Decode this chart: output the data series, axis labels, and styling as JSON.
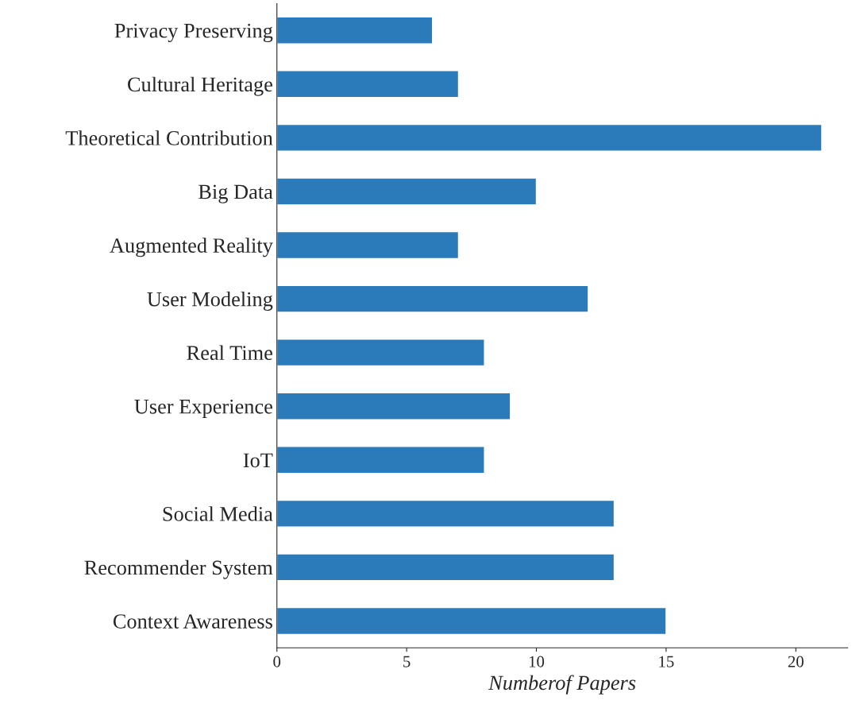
{
  "chart_data": {
    "type": "bar",
    "orientation": "horizontal",
    "xlabel": "Numberof Papers",
    "categories": [
      "Privacy Preserving",
      "Cultural Heritage",
      "Theoretical Contribution",
      "Big Data",
      "Augmented Reality",
      "User Modeling",
      "Real Time",
      "User Experience",
      "IoT",
      "Social Media",
      "Recommender System",
      "Context Awareness"
    ],
    "values": [
      6,
      7,
      21,
      10,
      7,
      12,
      8,
      9,
      8,
      13,
      13,
      15
    ],
    "color": "#2b7bba",
    "xlim": [
      0,
      22
    ],
    "xticks": [
      0,
      5,
      10,
      15,
      20
    ],
    "grid": false,
    "legend": false
  }
}
